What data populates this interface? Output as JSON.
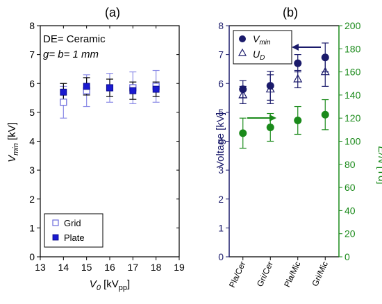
{
  "chart_data": [
    {
      "type": "scatter",
      "panel_label": "(a)",
      "annotations": {
        "line1": "DE= Ceramic",
        "line2": "g= b= 1 mm"
      },
      "xlabel": {
        "main": "V",
        "sub": "0",
        "unit_pre": " [kV",
        "unit_sub": "pp",
        "unit_post": "]"
      },
      "ylabel": {
        "main": "V",
        "sub": "min",
        "unit": " [kV]"
      },
      "xlim": [
        13,
        19
      ],
      "ylim": [
        0,
        8
      ],
      "xticks": [
        "13",
        "14",
        "15",
        "16",
        "17",
        "18",
        "19"
      ],
      "yticks": [
        "0",
        "1",
        "2",
        "3",
        "4",
        "5",
        "6",
        "7",
        "8"
      ],
      "legend": {
        "position": "bottom-left",
        "entries": [
          "Grid",
          "Plate"
        ]
      },
      "series": [
        {
          "name": "Grid",
          "marker": "open-square",
          "color": "#6b6bdc",
          "points": [
            {
              "x": 14,
              "y": 5.35,
              "err": 0.55
            },
            {
              "x": 15,
              "y": 5.75,
              "err": 0.55
            },
            {
              "x": 16,
              "y": 5.85,
              "err": 0.5
            },
            {
              "x": 17,
              "y": 5.85,
              "err": 0.55
            },
            {
              "x": 18,
              "y": 5.9,
              "err": 0.55
            }
          ]
        },
        {
          "name": "Plate",
          "marker": "filled-square",
          "color": "#1a1ad0",
          "points": [
            {
              "x": 14,
              "y": 5.7,
              "err": 0.3
            },
            {
              "x": 15,
              "y": 5.9,
              "err": 0.3
            },
            {
              "x": 16,
              "y": 5.85,
              "err": 0.3
            },
            {
              "x": 17,
              "y": 5.75,
              "err": 0.3
            },
            {
              "x": 18,
              "y": 5.8,
              "err": 0.25
            }
          ]
        }
      ]
    },
    {
      "type": "scatter",
      "panel_label": "(b)",
      "categories": [
        "Pla/Cer",
        "Gri/Cer",
        "Pla/Mic",
        "Gri/Mic"
      ],
      "ylabel": "Voltage [kV]",
      "y2label": {
        "main": "E/N",
        "unit": " [Td]"
      },
      "ylim": [
        0,
        8
      ],
      "y2lim": [
        0,
        200
      ],
      "yticks": [
        "0",
        "1",
        "2",
        "3",
        "4",
        "5",
        "6",
        "7",
        "8"
      ],
      "y2ticks": [
        "0",
        "20",
        "40",
        "60",
        "80",
        "100",
        "120",
        "140",
        "160",
        "180",
        "200"
      ],
      "colors": {
        "voltage_axis": "#1b1b6b",
        "en_axis": "#1a8a1a"
      },
      "legend": {
        "position": "top-left",
        "entries": [
          {
            "main": "V",
            "sub": "min"
          },
          {
            "main": "U",
            "sub": "D"
          }
        ]
      },
      "series": [
        {
          "name": "Vmin",
          "marker": "filled-circle",
          "color": "#1b1b6b",
          "axis": "left",
          "values": [
            5.8,
            5.92,
            6.7,
            6.9
          ],
          "errors": [
            0.3,
            0.5,
            0.3,
            0.5
          ]
        },
        {
          "name": "UD",
          "marker": "open-triangle",
          "color": "#1b1b6b",
          "axis": "left",
          "values": [
            5.6,
            5.8,
            6.15,
            6.4
          ],
          "errors": [
            0.3,
            0.5,
            0.3,
            0.5
          ]
        },
        {
          "name": "E/N",
          "marker": "filled-circle",
          "color": "#1a8a1a",
          "axis": "right",
          "values": [
            107,
            112,
            118,
            123
          ],
          "errors": [
            13,
            12,
            12,
            13
          ]
        }
      ]
    }
  ]
}
